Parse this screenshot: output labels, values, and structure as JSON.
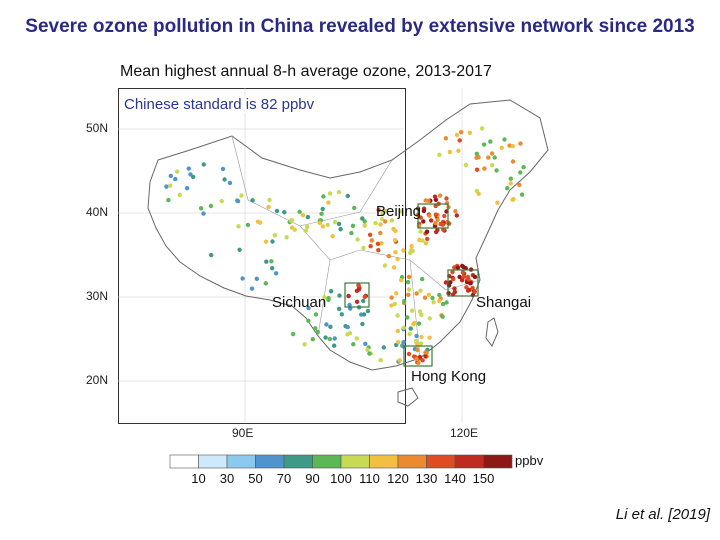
{
  "slide": {
    "title": "Severe ozone pollution in China revealed by extensive network since 2013",
    "subtitle": "Mean highest annual 8-h average ozone, 2013-2017",
    "note": "Chinese standard is 82 ppbv",
    "citation": "Li et al. [2019]"
  },
  "map": {
    "lat_labels": [
      "50N",
      "40N",
      "30N",
      "20N"
    ],
    "lon_labels": [
      "90E",
      "120E"
    ],
    "cities": [
      {
        "name": "Beijing"
      },
      {
        "name": "Sichuan"
      },
      {
        "name": "Shangai"
      },
      {
        "name": "Hong Kong"
      }
    ]
  },
  "colorbar": {
    "unit": "ppbv",
    "ticks": [
      "10",
      "30",
      "50",
      "70",
      "90",
      "100",
      "110",
      "120",
      "130",
      "140",
      "150"
    ],
    "colors": [
      "#ffffff",
      "#cde9fb",
      "#8cc9ef",
      "#4f94cc",
      "#3c9a86",
      "#5cb854",
      "#c7da52",
      "#f2c041",
      "#ed8a2f",
      "#df4b23",
      "#bf2a21",
      "#8e1818"
    ]
  }
}
